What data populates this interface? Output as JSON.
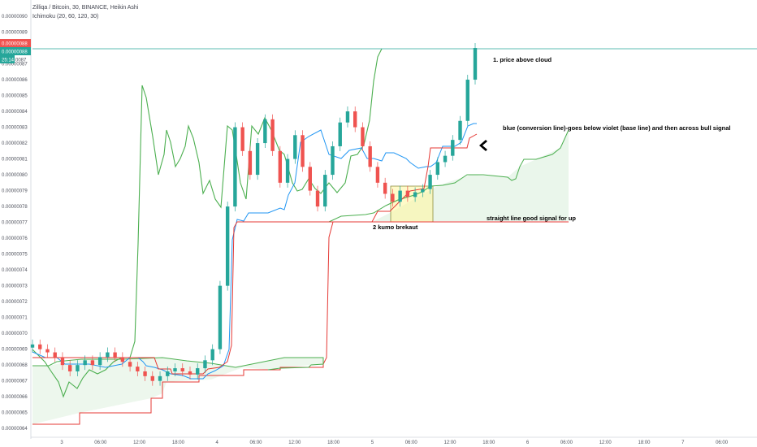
{
  "header": {
    "symbol_line": "Zilliqa / Bitcoin, 30, BINANCE, Heikin Ashi",
    "indicator_line": "Ichimoku (20, 60, 120, 30)"
  },
  "price_badges": {
    "top": "0.00000088",
    "middle": "0.00000088",
    "countdown": "25:14",
    "countdown_suffix": "0087",
    "top_color": "#ef5350",
    "middle_color": "#26a69a"
  },
  "annotations": {
    "a1": "1. price above cloud",
    "a2": "blue (conversion line)-goes below violet (base line)  and then across bull signal",
    "a3": "straight line good signal for up",
    "a4": "2 kumo brekaut"
  },
  "chart_data": {
    "type": "candlestick",
    "title": "Zilliqa / Bitcoin, 30, BINANCE, Heikin Ashi",
    "y_ticks": [
      "0.00000064",
      "0.00000065",
      "0.00000066",
      "0.00000067",
      "0.00000068",
      "0.00000069",
      "0.00000070",
      "0.00000071",
      "0.00000072",
      "0.00000073",
      "0.00000074",
      "0.00000075",
      "0.00000076",
      "0.00000077",
      "0.00000078",
      "0.00000079",
      "0.00000080",
      "0.00000081",
      "0.00000082",
      "0.00000083",
      "0.00000084",
      "0.00000085",
      "0.00000086",
      "0.00000087",
      "0.00000088",
      "0.00000089",
      "0.00000090"
    ],
    "ylim": [
      6.36e-07,
      9e-07
    ],
    "x_ticks": [
      "3",
      "06:00",
      "12:00",
      "18:00",
      "4",
      "06:00",
      "12:00",
      "18:00",
      "5",
      "06:00",
      "12:00",
      "18:00",
      "6",
      "06:00",
      "12:00",
      "18:00",
      "7",
      "06:00"
    ],
    "colors": {
      "up": "#26a69a",
      "down": "#ef5350",
      "conversion_line": "#2196f3",
      "base_line": "#e53935",
      "lagging_span": "#4caf50",
      "cloud_fill": "#e8f5e9",
      "highlight_box": "#fff59d"
    },
    "candles_approx": [
      [
        6.91e-07,
        6.93e-07
      ],
      [
        6.93e-07,
        6.9e-07
      ],
      [
        6.9e-07,
        6.88e-07
      ],
      [
        6.88e-07,
        6.85e-07
      ],
      [
        6.85e-07,
        6.8e-07
      ],
      [
        6.8e-07,
        6.76e-07
      ],
      [
        6.76e-07,
        6.8e-07
      ],
      [
        6.8e-07,
        6.83e-07
      ],
      [
        6.83e-07,
        6.8e-07
      ],
      [
        6.8e-07,
        6.85e-07
      ],
      [
        6.85e-07,
        6.88e-07
      ],
      [
        6.88e-07,
        6.85e-07
      ],
      [
        6.85e-07,
        6.82e-07
      ],
      [
        6.82e-07,
        6.79e-07
      ],
      [
        6.79e-07,
        6.76e-07
      ],
      [
        6.76e-07,
        6.73e-07
      ],
      [
        6.73e-07,
        6.7e-07
      ],
      [
        6.7e-07,
        6.73e-07
      ],
      [
        6.73e-07,
        6.76e-07
      ],
      [
        6.76e-07,
        6.78e-07
      ],
      [
        6.78e-07,
        6.76e-07
      ],
      [
        6.76e-07,
        6.74e-07
      ],
      [
        6.74e-07,
        6.78e-07
      ],
      [
        6.78e-07,
        6.83e-07
      ],
      [
        6.83e-07,
        6.9e-07
      ],
      [
        6.9e-07,
        7.3e-07
      ],
      [
        7.3e-07,
        7.8e-07
      ],
      [
        7.8e-07,
        8.3e-07
      ],
      [
        8.3e-07,
        8.15e-07
      ],
      [
        8.15e-07,
        8e-07
      ],
      [
        8e-07,
        8.2e-07
      ],
      [
        8.2e-07,
        8.35e-07
      ],
      [
        8.35e-07,
        8.15e-07
      ],
      [
        8.15e-07,
        7.95e-07
      ],
      [
        7.95e-07,
        8.1e-07
      ],
      [
        8.1e-07,
        8.25e-07
      ],
      [
        8.25e-07,
        8.05e-07
      ],
      [
        8.05e-07,
        7.9e-07
      ],
      [
        7.9e-07,
        7.8e-07
      ],
      [
        7.8e-07,
        8e-07
      ],
      [
        8e-07,
        8.18e-07
      ],
      [
        8.18e-07,
        8.33e-07
      ],
      [
        8.33e-07,
        8.4e-07
      ],
      [
        8.4e-07,
        8.3e-07
      ],
      [
        8.3e-07,
        8.18e-07
      ],
      [
        8.18e-07,
        8.05e-07
      ],
      [
        8.05e-07,
        7.95e-07
      ],
      [
        7.95e-07,
        7.88e-07
      ],
      [
        7.88e-07,
        7.83e-07
      ],
      [
        7.83e-07,
        7.9e-07
      ],
      [
        7.9e-07,
        7.86e-07
      ],
      [
        7.86e-07,
        7.89e-07
      ],
      [
        7.89e-07,
        7.91e-07
      ],
      [
        7.91e-07,
        8e-07
      ],
      [
        8e-07,
        8.08e-07
      ],
      [
        8.08e-07,
        8.12e-07
      ],
      [
        8.12e-07,
        8.22e-07
      ],
      [
        8.22e-07,
        8.34e-07
      ],
      [
        8.34e-07,
        8.6e-07
      ],
      [
        8.6e-07,
        8.8e-07
      ]
    ]
  }
}
